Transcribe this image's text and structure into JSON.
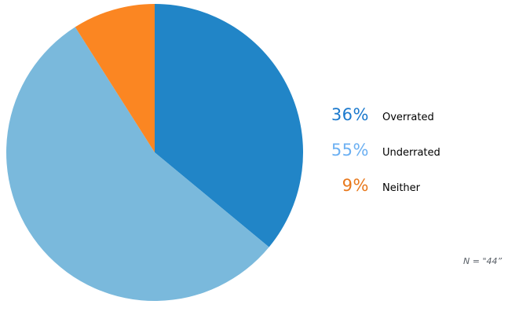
{
  "chart_data": {
    "type": "pie",
    "title": "",
    "categories": [
      "Overrated",
      "Underrated",
      "Neither"
    ],
    "values": [
      36,
      55,
      9
    ],
    "slices": [
      {
        "label": "Overrated",
        "value": 36,
        "color": "#2185c7",
        "legend_color": "#1b79cd"
      },
      {
        "label": "Underrated",
        "value": 55,
        "color": "#7ab9dc",
        "legend_color": "#6cb0f2"
      },
      {
        "label": "Neither",
        "value": 9,
        "color": "#fb8622",
        "legend_color": "#e8791d"
      }
    ],
    "start_angle_deg": -90,
    "direction": "clockwise",
    "legend_position": "right",
    "background": "#ffffff"
  },
  "legend": {
    "items": [
      {
        "percent": "36%",
        "label": "Overrated",
        "color": "#1b79cd"
      },
      {
        "percent": "55%",
        "label": "Underrated",
        "color": "#6cb0f2"
      },
      {
        "percent": "9%",
        "label": "Neither",
        "color": "#e8791d"
      }
    ]
  },
  "footnote": "N = \"44”"
}
